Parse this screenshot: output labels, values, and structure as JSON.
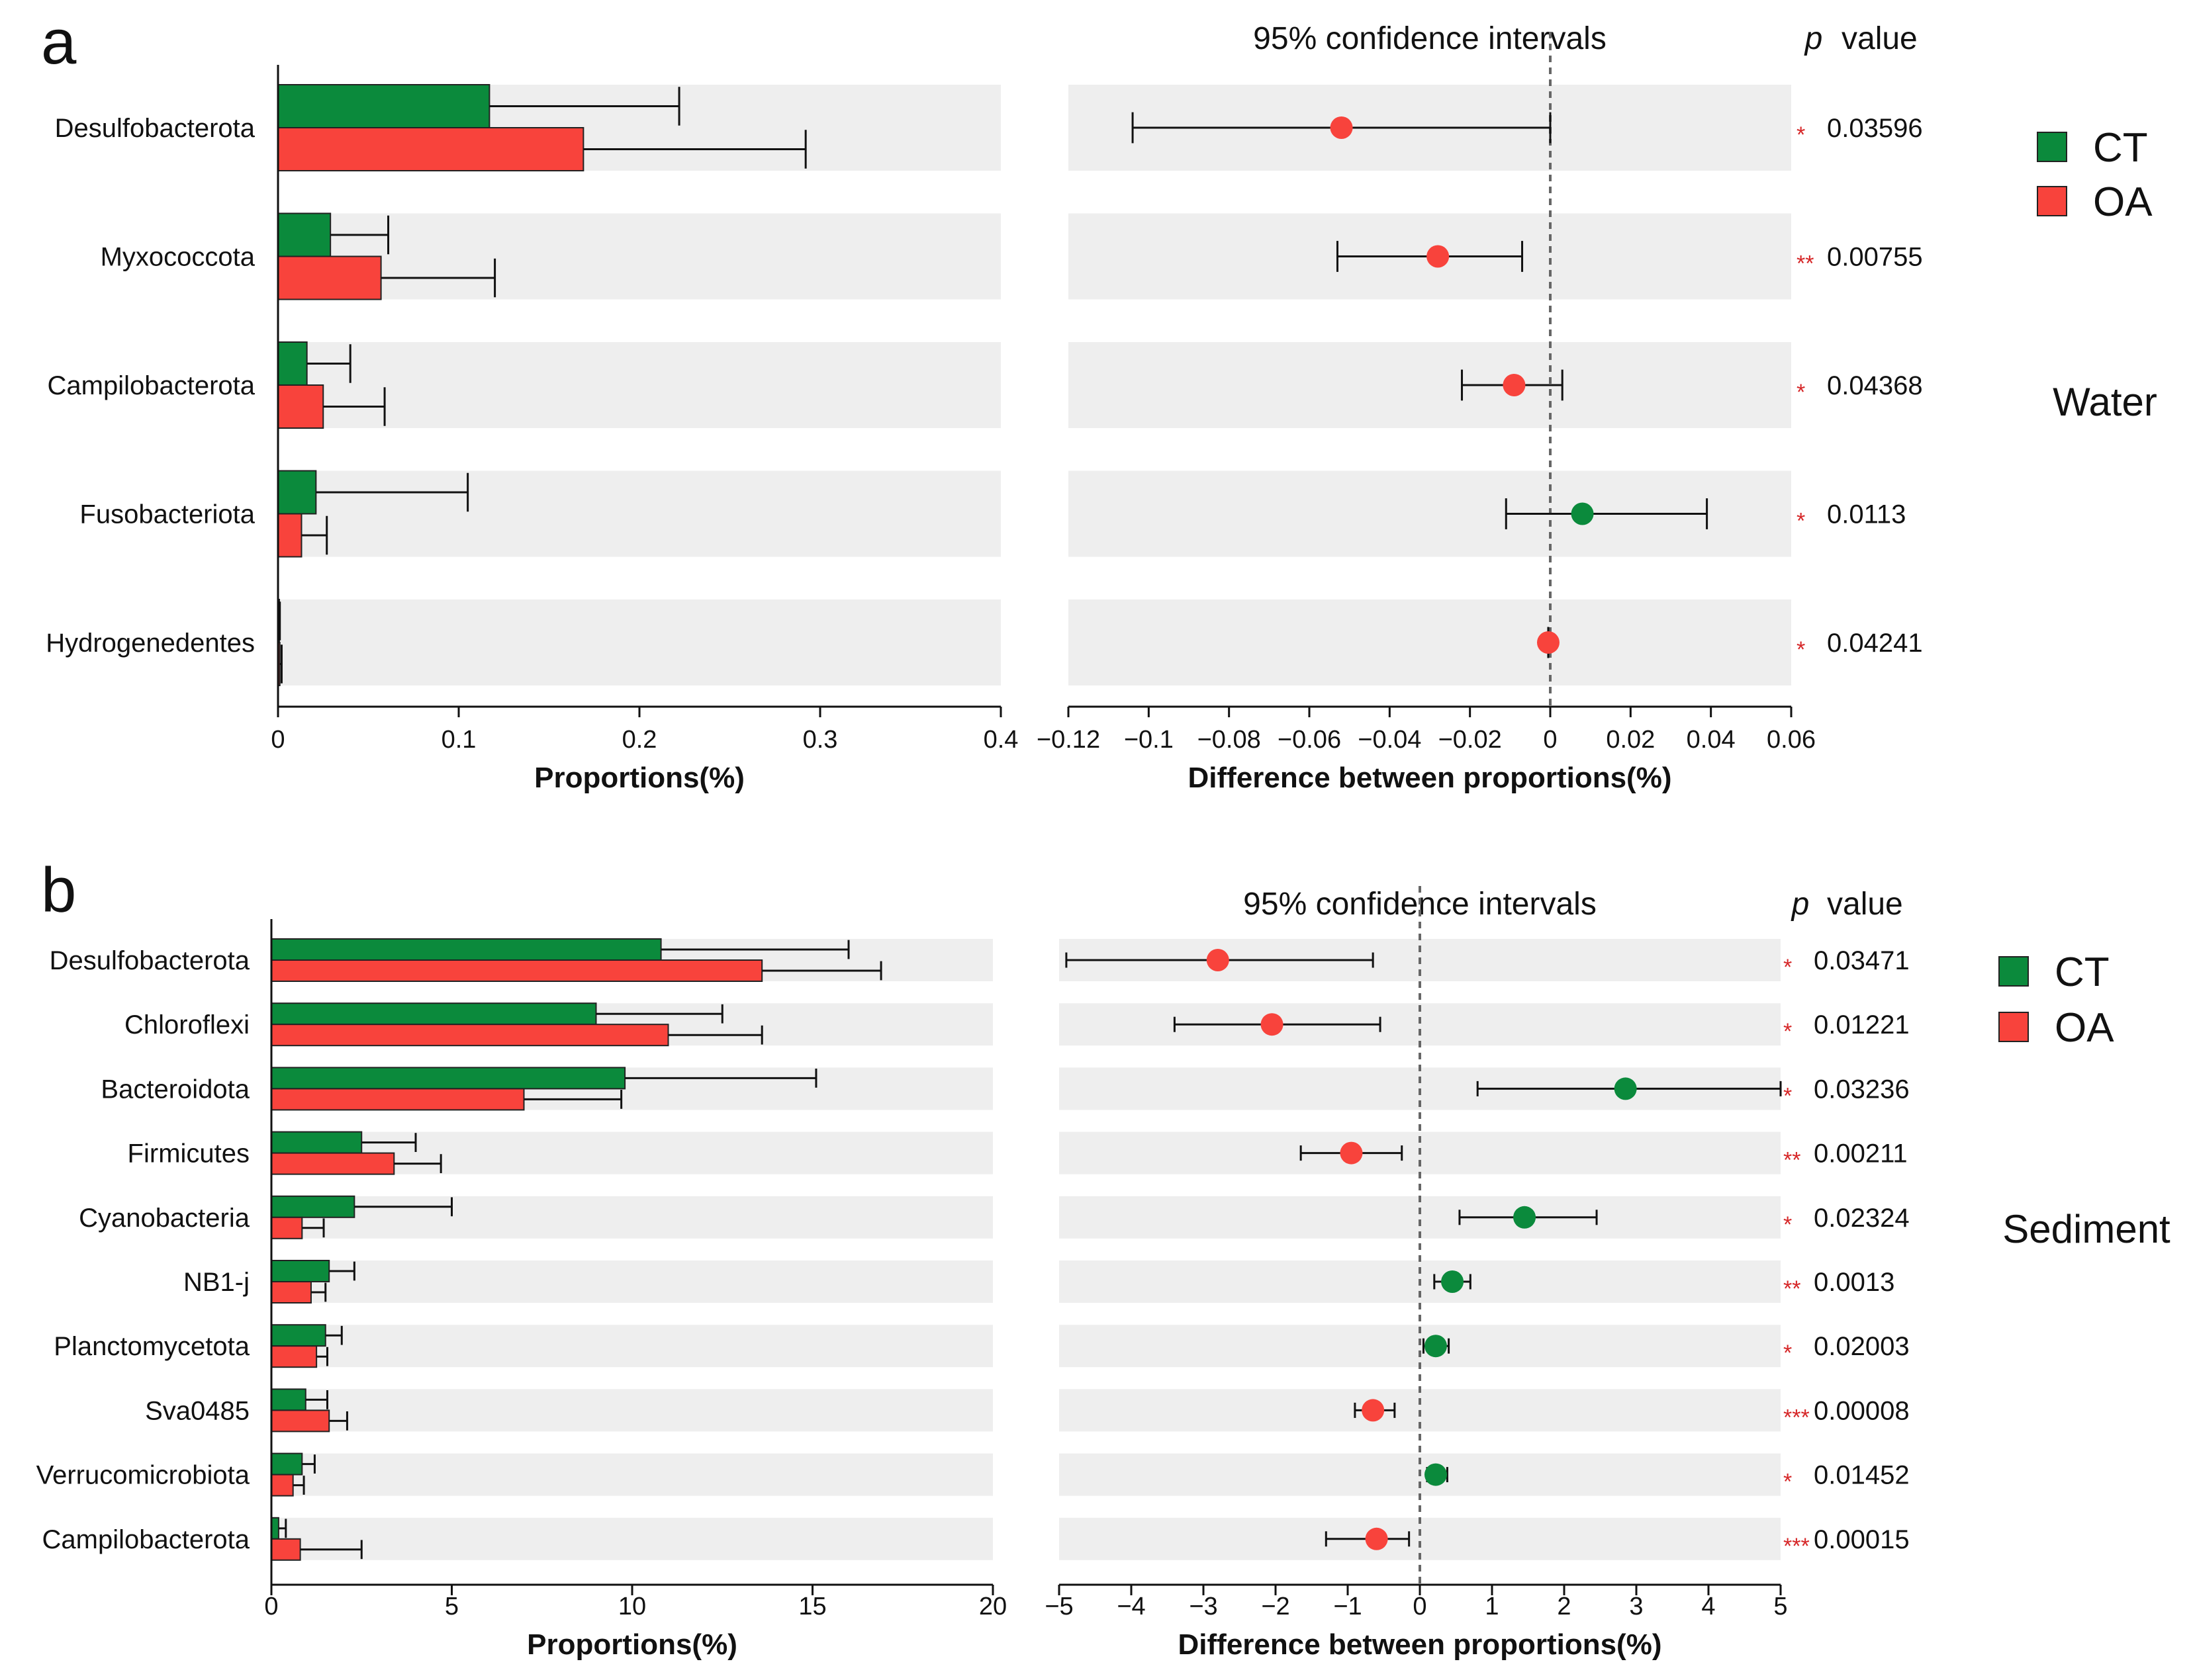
{
  "colors": {
    "ct": "#0b8a3c",
    "oa": "#f8433c",
    "band": "#eeeeee",
    "star": "#d62728"
  },
  "chart_data": [
    {
      "panel_label": "a",
      "type": "bar",
      "group_label": "Water",
      "title": "95% confidence intervals",
      "pvalue_header": {
        "p": "p",
        "label": "value"
      },
      "xlabel": "Proportions(%)",
      "diff_xlabel": "Difference between proportions(%)",
      "xlim": [
        0,
        0.4
      ],
      "x_ticks": [
        0,
        0.1,
        0.2,
        0.3,
        0.4
      ],
      "x_tick_labels": [
        "0",
        "0.1",
        "0.2",
        "0.3",
        "0.4"
      ],
      "diff_xlim": [
        -0.12,
        0.06
      ],
      "diff_ticks": [
        -0.12,
        -0.1,
        -0.08,
        -0.06,
        -0.04,
        -0.02,
        0,
        0.02,
        0.04,
        0.06
      ],
      "diff_tick_labels": [
        "−0.12",
        "−0.1",
        "−0.08",
        "−0.06",
        "−0.04",
        "−0.02",
        "0",
        "0.02",
        "0.04",
        "0.06"
      ],
      "categories": [
        "Desulfobacterota",
        "Myxococcota",
        "Campilobacterota",
        "Fusobacteriota",
        "Hydrogenedentes"
      ],
      "series": [
        {
          "name": "CT",
          "values": [
            0.117,
            0.029,
            0.016,
            0.021,
            0.0005
          ],
          "errors": [
            0.105,
            0.032,
            0.024,
            0.084,
            0.0005
          ]
        },
        {
          "name": "OA",
          "values": [
            0.169,
            0.057,
            0.025,
            0.013,
            0.001
          ],
          "errors": [
            0.123,
            0.063,
            0.034,
            0.014,
            0.001
          ]
        }
      ],
      "differences": [
        {
          "estimate": -0.052,
          "ci": [
            -0.104,
            0.0
          ],
          "favors": "OA"
        },
        {
          "estimate": -0.028,
          "ci": [
            -0.053,
            -0.007
          ],
          "favors": "OA"
        },
        {
          "estimate": -0.009,
          "ci": [
            -0.022,
            0.003
          ],
          "favors": "OA"
        },
        {
          "estimate": 0.008,
          "ci": [
            -0.011,
            0.039
          ],
          "favors": "CT"
        },
        {
          "estimate": -0.0005,
          "ci": [
            -0.0005,
            -0.0005
          ],
          "favors": "OA"
        }
      ],
      "p_values": [
        "0.03596",
        "0.00755",
        "0.04368",
        "0.0113",
        "0.04241"
      ],
      "significance": [
        "*",
        "**",
        "*",
        "*",
        "*"
      ]
    },
    {
      "panel_label": "b",
      "type": "bar",
      "group_label": "Sediment",
      "title": "95% confidence intervals",
      "pvalue_header": {
        "p": "p",
        "label": "value"
      },
      "xlabel": "Proportions(%)",
      "diff_xlabel": "Difference between proportions(%)",
      "xlim": [
        0,
        20
      ],
      "x_ticks": [
        0,
        5,
        10,
        15,
        20
      ],
      "x_tick_labels": [
        "0",
        "5",
        "10",
        "15",
        "20"
      ],
      "diff_xlim": [
        -5,
        5
      ],
      "diff_ticks": [
        -5,
        -4,
        -3,
        -2,
        -1,
        0,
        1,
        2,
        3,
        4,
        5
      ],
      "diff_tick_labels": [
        "−5",
        "−4",
        "−3",
        "−2",
        "−1",
        "0",
        "1",
        "2",
        "3",
        "4",
        "5"
      ],
      "categories": [
        "Desulfobacterota",
        "Chloroflexi",
        "Bacteroidota",
        "Firmicutes",
        "Cyanobacteria",
        "NB1-j",
        "Planctomycetota",
        "Sva0485",
        "Verrucomicrobiota",
        "Campilobacterota"
      ],
      "series": [
        {
          "name": "CT",
          "values": [
            10.8,
            9.0,
            9.8,
            2.5,
            2.3,
            1.6,
            1.5,
            0.95,
            0.85,
            0.2
          ],
          "errors": [
            5.2,
            3.5,
            5.3,
            1.5,
            2.7,
            0.7,
            0.45,
            0.6,
            0.35,
            0.2
          ]
        },
        {
          "name": "OA",
          "values": [
            13.6,
            11.0,
            7.0,
            3.4,
            0.85,
            1.1,
            1.25,
            1.6,
            0.6,
            0.8
          ],
          "errors": [
            3.3,
            2.6,
            2.7,
            1.3,
            0.6,
            0.4,
            0.3,
            0.5,
            0.3,
            1.7
          ]
        }
      ],
      "differences": [
        {
          "estimate": -2.8,
          "ci": [
            -4.9,
            -0.65
          ],
          "favors": "OA"
        },
        {
          "estimate": -2.05,
          "ci": [
            -3.4,
            -0.55
          ],
          "favors": "OA"
        },
        {
          "estimate": 2.85,
          "ci": [
            0.8,
            5.0
          ],
          "favors": "CT"
        },
        {
          "estimate": -0.95,
          "ci": [
            -1.65,
            -0.25
          ],
          "favors": "OA"
        },
        {
          "estimate": 1.45,
          "ci": [
            0.55,
            2.45
          ],
          "favors": "CT"
        },
        {
          "estimate": 0.45,
          "ci": [
            0.2,
            0.7
          ],
          "favors": "CT"
        },
        {
          "estimate": 0.22,
          "ci": [
            0.05,
            0.4
          ],
          "favors": "CT"
        },
        {
          "estimate": -0.65,
          "ci": [
            -0.9,
            -0.35
          ],
          "favors": "OA"
        },
        {
          "estimate": 0.22,
          "ci": [
            0.1,
            0.38
          ],
          "favors": "CT"
        },
        {
          "estimate": -0.6,
          "ci": [
            -1.3,
            -0.15
          ],
          "favors": "OA"
        }
      ],
      "p_values": [
        "0.03471",
        "0.01221",
        "0.03236",
        "0.00211",
        "0.02324",
        "0.0013",
        "0.02003",
        "0.00008",
        "0.01452",
        "0.00015"
      ],
      "significance": [
        "*",
        "*",
        "*",
        "**",
        "*",
        "**",
        "*",
        "***",
        "*",
        "***"
      ]
    }
  ]
}
